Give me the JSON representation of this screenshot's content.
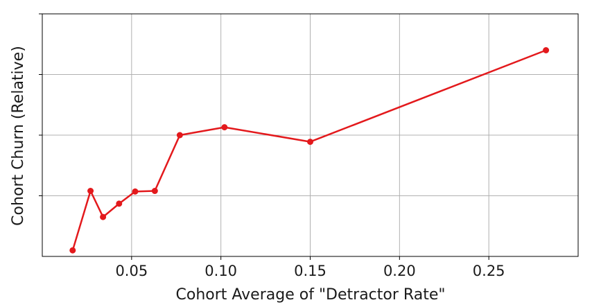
{
  "chart_data": {
    "type": "line",
    "title": "",
    "xlabel": "Cohort Average of  \"Detractor Rate\"",
    "ylabel": "Cohort Churn (Relative)",
    "xlim": [
      0.0,
      0.3
    ],
    "ylim": [
      0.0,
      4.0
    ],
    "x_ticks": [
      0.05,
      0.1,
      0.15,
      0.2,
      0.25
    ],
    "x_tick_labels": [
      "0.05",
      "0.10",
      "0.15",
      "0.20",
      "0.25"
    ],
    "y_ticks": [
      1,
      2,
      3
    ],
    "y_tick_labels": [],
    "grid": true,
    "colors": {
      "series": "#e3191c",
      "grid": "#b0b0b0",
      "axis": "#000000"
    },
    "series": [
      {
        "x": [
          0.017,
          0.027,
          0.034,
          0.043,
          0.052,
          0.063,
          0.077,
          0.102,
          0.15,
          0.282
        ],
        "y": [
          0.1,
          1.08,
          0.65,
          0.87,
          1.07,
          1.08,
          2.0,
          2.13,
          1.89,
          3.4
        ]
      }
    ]
  }
}
